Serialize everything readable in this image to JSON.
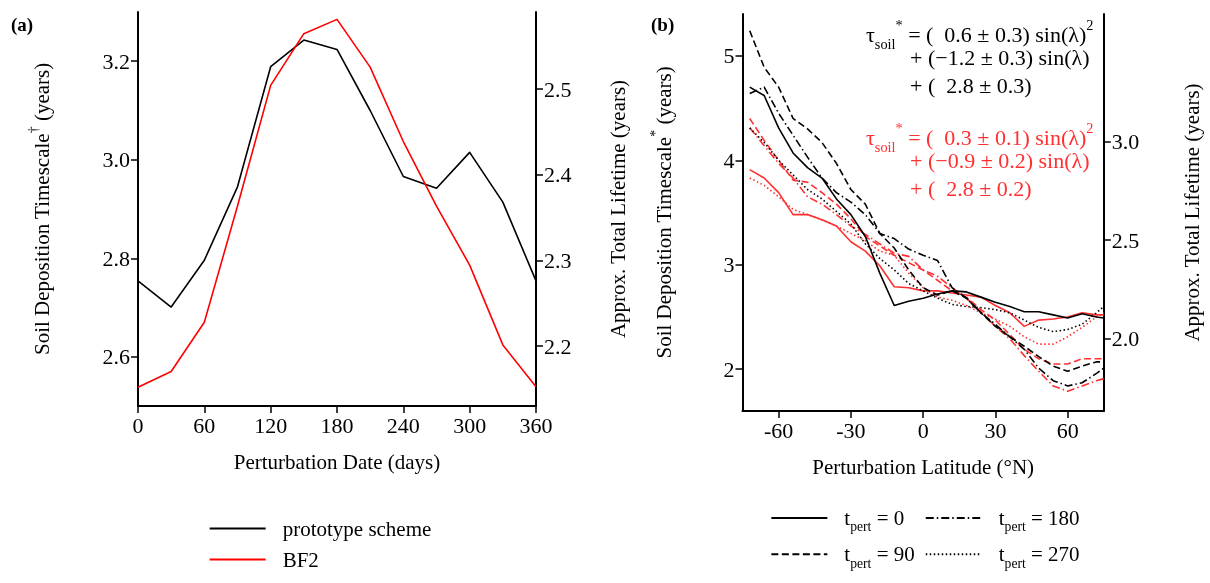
{
  "chart_data": [
    {
      "type": "line",
      "title": "(a)",
      "xlabel": "Perturbation Date (days)",
      "ylabel": "Soil Deposition Timescale$^{†}$ (years)",
      "y2label": "Approx. Total Lifetime (years)",
      "x": [
        0,
        30,
        60,
        90,
        120,
        150,
        180,
        210,
        240,
        270,
        300,
        330,
        360
      ],
      "series": [
        {
          "name": "prototype scheme",
          "color": "#000000",
          "line_style": "solid",
          "values": [
            2.754,
            2.701,
            2.796,
            2.945,
            3.189,
            3.243,
            3.224,
            3.1,
            2.966,
            2.942,
            3.015,
            2.914,
            2.754
          ]
        },
        {
          "name": "BF2",
          "color": "#ff0000",
          "line_style": "solid",
          "values": [
            2.538,
            2.57,
            2.67,
            2.906,
            3.151,
            3.256,
            3.285,
            3.188,
            3.037,
            2.906,
            2.786,
            2.624,
            2.539
          ]
        }
      ],
      "xlim": [
        0,
        360
      ],
      "xticks": [
        0,
        60,
        120,
        180,
        240,
        300,
        360
      ],
      "ylim": [
        2.5,
        3.3
      ],
      "yticks": [
        2.6,
        2.8,
        {
          "value": 3,
          "label": "3.0"
        },
        3.2
      ],
      "y2lim": [
        2.13,
        2.59
      ],
      "y2ticks": [
        2.2,
        2.3,
        2.4,
        2.5
      ],
      "legend": "bottom"
    },
    {
      "type": "line",
      "title": "(b)",
      "xlabel": "Perturbation Latitude (°N)",
      "ylabel": "Soil Deposition Timescale$^{*}$ (years)",
      "y2label": "Approx. Total Lifetime (years)",
      "x": [
        -72,
        -66,
        -60,
        -54,
        -48,
        -42,
        -36,
        -30,
        -24,
        -18,
        -12,
        -6,
        0,
        6,
        12,
        18,
        24,
        30,
        36,
        42,
        48,
        54,
        60,
        66,
        72,
        75
      ],
      "series": [
        {
          "name": "t$_{pert}$ = 0",
          "color": "#000000",
          "line_style": "solid",
          "values": [
            4.7,
            4.62,
            4.31,
            4.07,
            3.93,
            3.83,
            3.63,
            3.48,
            3.27,
            2.92,
            2.61,
            2.65,
            2.68,
            2.72,
            2.75,
            2.74,
            2.69,
            2.64,
            2.6,
            2.55,
            2.55,
            2.52,
            2.49,
            2.53,
            2.5,
            2.49
          ]
        },
        {
          "name": "t$_{pert}$ = 90",
          "color": "#000000",
          "line_style": "dashed",
          "values": [
            5.24,
            4.89,
            4.7,
            4.4,
            4.3,
            4.17,
            3.97,
            3.72,
            3.58,
            3.3,
            3.16,
            2.95,
            2.78,
            2.71,
            2.75,
            2.68,
            2.54,
            2.41,
            2.31,
            2.22,
            2.12,
            2.03,
            1.98,
            2.03,
            2.07,
            2.07
          ]
        },
        {
          "name": "t$_{pert}$ = 180",
          "color": "#000000",
          "line_style": "dashdot",
          "values": [
            4.64,
            4.7,
            4.45,
            4.24,
            4.03,
            3.83,
            3.69,
            3.6,
            3.48,
            3.3,
            3.25,
            3.15,
            3.09,
            3.04,
            2.78,
            2.68,
            2.54,
            2.43,
            2.31,
            2.19,
            2.01,
            1.89,
            1.84,
            1.87,
            1.96,
            2.01
          ]
        },
        {
          "name": "t$_{pert}$ = 270",
          "color": "#000000",
          "line_style": "dotted",
          "values": [
            4.31,
            4.17,
            4.0,
            3.86,
            3.72,
            3.63,
            3.51,
            3.39,
            3.2,
            3.06,
            2.95,
            2.82,
            2.75,
            2.68,
            2.62,
            2.6,
            2.59,
            2.57,
            2.54,
            2.47,
            2.4,
            2.36,
            2.38,
            2.43,
            2.54,
            2.6
          ]
        },
        {
          "color": "#ff3030",
          "line_style": "solid",
          "values": [
            3.91,
            3.83,
            3.69,
            3.48,
            3.48,
            3.43,
            3.37,
            3.22,
            3.13,
            2.99,
            2.79,
            2.78,
            2.75,
            2.75,
            2.73,
            2.71,
            2.69,
            2.61,
            2.54,
            2.41,
            2.47,
            2.48,
            2.5,
            2.54,
            2.52,
            2.52
          ]
        },
        {
          "color": "#ff3030",
          "line_style": "dashed",
          "values": [
            4.4,
            4.19,
            4.0,
            3.81,
            3.79,
            3.69,
            3.58,
            3.44,
            3.27,
            3.18,
            3.09,
            3.02,
            2.95,
            2.85,
            2.75,
            2.69,
            2.57,
            2.47,
            2.33,
            2.19,
            2.1,
            2.05,
            2.05,
            2.1,
            2.1,
            2.1
          ]
        },
        {
          "color": "#ff3030",
          "line_style": "dashdot",
          "values": [
            4.31,
            4.14,
            3.97,
            3.83,
            3.65,
            3.58,
            3.48,
            3.37,
            3.29,
            3.2,
            3.11,
            3.08,
            2.95,
            2.89,
            2.78,
            2.68,
            2.55,
            2.41,
            2.29,
            2.13,
            1.98,
            1.84,
            1.79,
            1.84,
            1.89,
            1.91
          ]
        },
        {
          "color": "#ff3030",
          "line_style": "dotted",
          "values": [
            3.83,
            3.76,
            3.65,
            3.53,
            3.48,
            3.43,
            3.37,
            3.3,
            3.23,
            3.13,
            3.09,
            2.92,
            2.78,
            2.69,
            2.66,
            2.61,
            2.54,
            2.48,
            2.41,
            2.31,
            2.24,
            2.24,
            2.31,
            2.4,
            2.5,
            2.54
          ]
        }
      ],
      "annotations": [
        "τ$_{soil}$$^{*}$ = (  0.6 ± 0.3) sin(λ)$^{2}$",
        "+ (−1.2 ± 0.3) sin(λ)",
        "+ (  2.8 ± 0.3)",
        "τ$_{soil}$$^{*}$ = (  0.3 ± 0.1) sin(λ)$^{2}$",
        "+ (−0.9 ± 0.2) sin(λ)",
        "+ (  2.8 ± 0.2)"
      ],
      "xlim": [
        -75,
        75
      ],
      "xticks": [
        -60,
        -30,
        0,
        30,
        60
      ],
      "ylim": [
        1.6,
        5.4
      ],
      "yticks": [
        2,
        3,
        4,
        5
      ],
      "y2lim": [
        1.63,
        3.65
      ],
      "y2ticks": [
        {
          "value": 2,
          "label": "2.0"
        },
        2.5,
        {
          "value": 3,
          "label": "3.0"
        }
      ],
      "legend": "bottom"
    }
  ]
}
